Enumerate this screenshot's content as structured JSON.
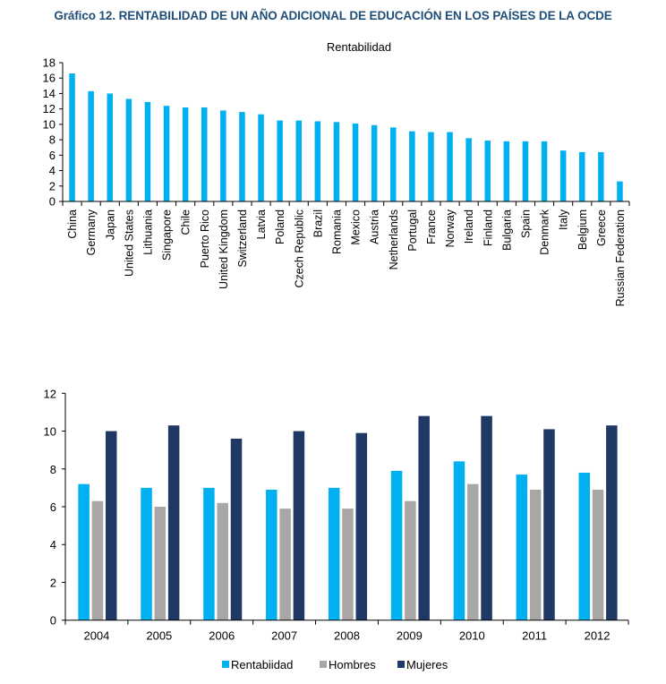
{
  "page": {
    "title": "Gráfico 12. RENTABILIDAD DE UN AÑO ADICIONAL DE EDUCACIÓN EN LOS PAÍSES DE LA OCDE"
  },
  "colors": {
    "title": "#1F4E79",
    "rentabilidad": "#00B0F0",
    "hombres": "#A9A6A6",
    "mujeres": "#1F3864",
    "axis": "#000000"
  },
  "chart_data": [
    {
      "type": "bar",
      "title": "Rentabilidad",
      "xlabel": "",
      "ylabel": "",
      "ylim": [
        0,
        18
      ],
      "yticks": [
        0,
        2,
        4,
        6,
        8,
        10,
        12,
        14,
        16,
        18
      ],
      "grid": false,
      "legend": "none",
      "categories": [
        "China",
        "Germany",
        "Japan",
        "United States",
        "Lithuania",
        "Singapore",
        "Chile",
        "Puerto Rico",
        "United Kingdom",
        "Switzerland",
        "Latvia",
        "Poland",
        "Czech Republic",
        "Brazil",
        "Romania",
        "Mexico",
        "Austria",
        "Netherlands",
        "Portugal",
        "France",
        "Norway",
        "Ireland",
        "Finland",
        "Bulgaria",
        "Spain",
        "Denmark",
        "Italy",
        "Belgium",
        "Greece",
        "Russian Federation"
      ],
      "series": [
        {
          "name": "Rentabilidad",
          "color_key": "rentabilidad",
          "values": [
            16.6,
            14.3,
            14.0,
            13.3,
            12.9,
            12.4,
            12.2,
            12.2,
            11.8,
            11.6,
            11.3,
            10.5,
            10.5,
            10.4,
            10.3,
            10.1,
            9.9,
            9.6,
            9.1,
            9.0,
            9.0,
            8.2,
            7.9,
            7.8,
            7.8,
            7.8,
            6.6,
            6.4,
            6.4,
            2.6
          ]
        }
      ]
    },
    {
      "type": "bar",
      "title": "",
      "xlabel": "",
      "ylabel": "",
      "ylim": [
        0,
        12
      ],
      "yticks": [
        0,
        2,
        4,
        6,
        8,
        10,
        12
      ],
      "grid": false,
      "legend": "bottom",
      "categories": [
        "2004",
        "2005",
        "2006",
        "2007",
        "2008",
        "2009",
        "2010",
        "2011",
        "2012"
      ],
      "series": [
        {
          "name": "Rentabiidad",
          "color_key": "rentabilidad",
          "values": [
            7.2,
            7.0,
            7.0,
            6.9,
            7.0,
            7.9,
            8.4,
            7.7,
            7.8
          ]
        },
        {
          "name": "Hombres",
          "color_key": "hombres",
          "values": [
            6.3,
            6.0,
            6.2,
            5.9,
            5.9,
            6.3,
            7.2,
            6.9,
            6.9
          ]
        },
        {
          "name": "Mujeres",
          "color_key": "mujeres",
          "values": [
            10.0,
            10.3,
            9.6,
            10.0,
            9.9,
            10.8,
            10.8,
            10.1,
            10.3
          ]
        }
      ]
    }
  ]
}
